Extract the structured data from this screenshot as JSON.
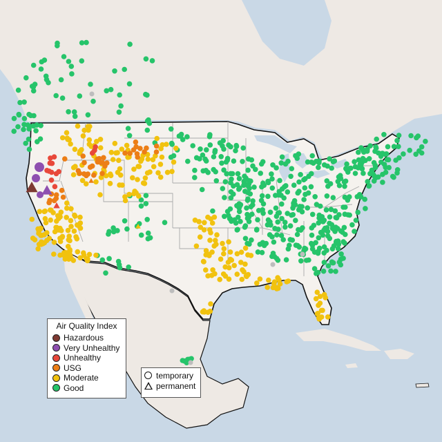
{
  "legend": {
    "title": "Air Quality Index",
    "categories": [
      {
        "label": "Hazardous",
        "color": "#7e3a32"
      },
      {
        "label": "Very Unhealthy",
        "color": "#8e4fb0"
      },
      {
        "label": "Unhealthy",
        "color": "#e8483a"
      },
      {
        "label": "USG",
        "color": "#ec7e16"
      },
      {
        "label": "Moderate",
        "color": "#f1c20f"
      },
      {
        "label": "Good",
        "color": "#26c46a"
      }
    ]
  },
  "type_legend": {
    "temporary_label": "temporary",
    "permanent_label": "permanent"
  },
  "colors": {
    "water": "#c9d8e6",
    "land": "#f0ebe6",
    "us_land": "#f4f1ee",
    "border": "#111111",
    "state_lines": "#a9a9a9",
    "no_data": "#bdbdbd"
  }
}
